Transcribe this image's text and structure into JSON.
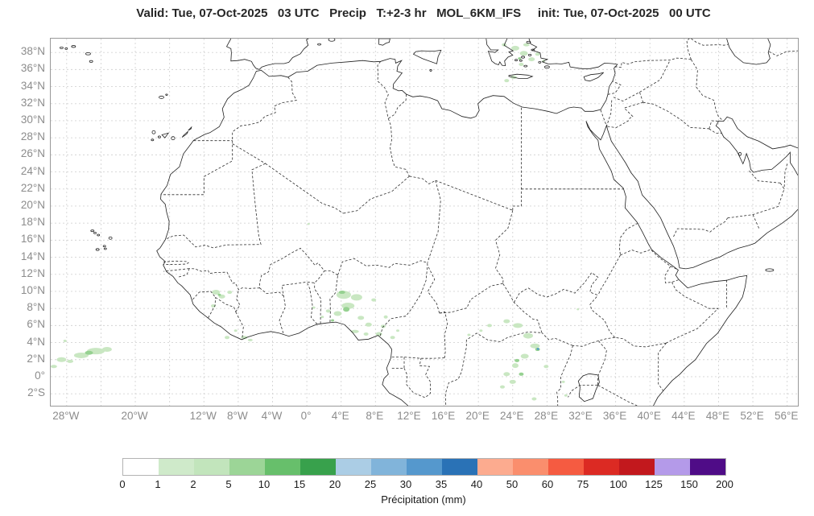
{
  "title": "Valid: Tue, 07-Oct-2025   03 UTC   Precip   T:+2-3 hr   MOL_6KM_IFS     init: Tue, 07-Oct-2025   00 UTC",
  "map": {
    "extent": {
      "lon_min": -29.86,
      "lon_max": 57.25,
      "lat_min": -3.4,
      "lat_max": 39.62
    },
    "grid": {
      "lon_start": -28,
      "lon_step": 4,
      "lon_end": 56,
      "lat_start": -2,
      "lat_step": 2,
      "lat_end": 38,
      "color": "#d4d4d4"
    },
    "lat_labels": [
      {
        "v": 38,
        "t": "38°N"
      },
      {
        "v": 36,
        "t": "36°N"
      },
      {
        "v": 34,
        "t": "34°N"
      },
      {
        "v": 32,
        "t": "32°N"
      },
      {
        "v": 30,
        "t": "30°N"
      },
      {
        "v": 28,
        "t": "28°N"
      },
      {
        "v": 26,
        "t": "26°N"
      },
      {
        "v": 24,
        "t": "24°N"
      },
      {
        "v": 22,
        "t": "22°N"
      },
      {
        "v": 20,
        "t": "20°N"
      },
      {
        "v": 18,
        "t": "18°N"
      },
      {
        "v": 16,
        "t": "16°N"
      },
      {
        "v": 14,
        "t": "14°N"
      },
      {
        "v": 12,
        "t": "12°N"
      },
      {
        "v": 10,
        "t": "10°N"
      },
      {
        "v": 8,
        "t": "8°N"
      },
      {
        "v": 6,
        "t": "6°N"
      },
      {
        "v": 4,
        "t": "4°N"
      },
      {
        "v": 2,
        "t": "2°N"
      },
      {
        "v": 0,
        "t": "0°"
      },
      {
        "v": -2,
        "t": "2°S"
      }
    ],
    "lon_labels": [
      {
        "v": -28,
        "t": "28°W"
      },
      {
        "v": -20,
        "t": "20°W"
      },
      {
        "v": -12,
        "t": "12°W"
      },
      {
        "v": -8,
        "t": "8°W"
      },
      {
        "v": -4,
        "t": "4°W"
      },
      {
        "v": 0,
        "t": "0°"
      },
      {
        "v": 4,
        "t": "4°E"
      },
      {
        "v": 8,
        "t": "8°E"
      },
      {
        "v": 12,
        "t": "12°E"
      },
      {
        "v": 16,
        "t": "16°E"
      },
      {
        "v": 20,
        "t": "20°E"
      },
      {
        "v": 24,
        "t": "24°E"
      },
      {
        "v": 28,
        "t": "28°E"
      },
      {
        "v": 32,
        "t": "32°E"
      },
      {
        "v": 36,
        "t": "36°E"
      },
      {
        "v": 40,
        "t": "40°E"
      },
      {
        "v": 44,
        "t": "44°E"
      },
      {
        "v": 48,
        "t": "48°E"
      },
      {
        "v": 52,
        "t": "52°E"
      },
      {
        "v": 56,
        "t": "56°E"
      }
    ],
    "coast_color": "#1f1f1f",
    "border_color": "#2e2e2e"
  },
  "colorbar": {
    "label": "Précipitation (mm)",
    "ticks": [
      "0",
      "1",
      "2",
      "5",
      "10",
      "15",
      "20",
      "25",
      "30",
      "35",
      "40",
      "50",
      "60",
      "75",
      "100",
      "125",
      "150",
      "200"
    ],
    "colors": [
      "#ffffff",
      "#cfeaca",
      "#c2e5bc",
      "#9cd597",
      "#67bf6b",
      "#38a14c",
      "#abcde5",
      "#81b4da",
      "#5598cd",
      "#2a72b6",
      "#fcab8f",
      "#fa8e6d",
      "#f55b41",
      "#dc2a23",
      "#c2181d",
      "#b49ae9",
      "#4f0c87"
    ]
  },
  "chart_data": {
    "type": "map-precipitation",
    "title": "Precip T:+2-3 hr MOL_6KM_IFS",
    "units": "mm",
    "levels_mm": [
      0,
      1,
      2,
      5,
      10,
      15,
      20,
      25,
      30,
      35,
      40,
      50,
      60,
      75,
      100,
      125,
      150,
      200
    ],
    "level_colors": {
      "1": "#c9e7c2",
      "2": "#96d191",
      "4": "#4d97cb"
    },
    "blob_format": "[lon, lat, rx_px, ry_px, level]",
    "blobs": [
      [
        -29.5,
        1.2,
        4,
        2,
        1
      ],
      [
        -28.6,
        2.0,
        6,
        3,
        1
      ],
      [
        -27.6,
        1.8,
        4,
        2,
        1
      ],
      [
        -26.3,
        2.5,
        9,
        3.5,
        1
      ],
      [
        -24.6,
        3.0,
        11,
        4,
        1
      ],
      [
        -23.3,
        3.2,
        6,
        3,
        1
      ],
      [
        -25.4,
        2.8,
        5,
        2.5,
        2
      ],
      [
        -28.2,
        4.2,
        2,
        1.5,
        1
      ],
      [
        -10.6,
        9.9,
        5,
        3,
        1
      ],
      [
        -9.9,
        9.4,
        4,
        2.5,
        1
      ],
      [
        -10.9,
        8.3,
        3,
        2,
        1
      ],
      [
        -9.0,
        9.9,
        3,
        2,
        1
      ],
      [
        -10.2,
        9.6,
        2,
        1.5,
        2
      ],
      [
        -9.3,
        4.6,
        3,
        2,
        1
      ],
      [
        -7.3,
        4.6,
        4,
        2,
        1
      ],
      [
        -6.6,
        4.3,
        3,
        1.5,
        1
      ],
      [
        -8.3,
        5.4,
        2,
        1.5,
        1
      ],
      [
        0.2,
        17.9,
        1.5,
        1.2,
        1
      ],
      [
        4.3,
        9.6,
        9,
        5,
        1
      ],
      [
        5.8,
        9.3,
        7,
        4,
        1
      ],
      [
        4.8,
        8.3,
        8,
        4,
        1
      ],
      [
        3.6,
        7.4,
        5,
        3,
        1
      ],
      [
        4.6,
        7.9,
        4,
        3,
        2
      ],
      [
        4.1,
        9.9,
        4,
        2,
        2
      ],
      [
        6.3,
        6.9,
        4,
        2.5,
        1
      ],
      [
        7.2,
        6.1,
        4,
        2.5,
        1
      ],
      [
        5.6,
        5.3,
        5,
        2,
        1
      ],
      [
        6.9,
        5.0,
        3,
        2,
        1
      ],
      [
        2.5,
        7.7,
        3,
        2,
        1
      ],
      [
        1.8,
        7.0,
        2,
        1.5,
        1
      ],
      [
        8.4,
        5.0,
        4,
        2.5,
        1
      ],
      [
        8.9,
        5.9,
        3,
        2,
        1
      ],
      [
        3.0,
        6.6,
        2,
        1.5,
        2
      ],
      [
        0.8,
        8.1,
        2,
        1.5,
        1
      ],
      [
        9.2,
        7.0,
        2.5,
        2,
        1
      ],
      [
        7.8,
        9.0,
        3,
        2,
        1
      ],
      [
        10.0,
        4.6,
        3,
        2,
        1
      ],
      [
        10.6,
        5.4,
        2,
        1.5,
        1
      ],
      [
        21.3,
        6.0,
        3,
        2,
        1
      ],
      [
        23.3,
        6.5,
        4,
        2.5,
        1
      ],
      [
        24.6,
        6.0,
        6,
        3,
        1
      ],
      [
        25.8,
        4.8,
        6,
        3.5,
        1
      ],
      [
        26.6,
        3.6,
        6,
        3,
        1
      ],
      [
        26.9,
        3.2,
        3,
        2,
        2
      ],
      [
        26.95,
        3.25,
        1.5,
        1.2,
        4
      ],
      [
        25.4,
        2.4,
        5,
        3,
        1
      ],
      [
        24.3,
        1.3,
        4,
        3,
        1
      ],
      [
        23.3,
        0.3,
        4,
        2.5,
        1
      ],
      [
        24.0,
        -0.6,
        4,
        2.5,
        1
      ],
      [
        22.8,
        -1.2,
        3,
        2,
        1
      ],
      [
        25.0,
        0.3,
        3,
        2,
        2
      ],
      [
        24.5,
        1.9,
        3,
        2,
        2
      ],
      [
        27.9,
        1.2,
        3,
        2,
        1
      ],
      [
        29.9,
        -0.6,
        2,
        1.5,
        1
      ],
      [
        30.2,
        -2.2,
        2,
        1.5,
        1
      ],
      [
        26.5,
        -2.6,
        3,
        2,
        1
      ],
      [
        20.3,
        5.4,
        2,
        1.5,
        1
      ],
      [
        18.9,
        4.9,
        2,
        1.5,
        1
      ],
      [
        31.6,
        7.9,
        1.5,
        1.2,
        1
      ],
      [
        24.3,
        38.5,
        5,
        3,
        1
      ],
      [
        25.3,
        37.9,
        5,
        3,
        1
      ],
      [
        26.2,
        37.2,
        4,
        2.5,
        1
      ],
      [
        25.0,
        36.6,
        3,
        2,
        1
      ],
      [
        24.1,
        35.1,
        4,
        2,
        1
      ],
      [
        23.3,
        34.7,
        3,
        2,
        1
      ],
      [
        26.9,
        37.8,
        3,
        2,
        1
      ],
      [
        25.6,
        38.9,
        4,
        2,
        1
      ],
      [
        24.8,
        37.3,
        2,
        1.5,
        2
      ],
      [
        23.0,
        38.9,
        3,
        2,
        1
      ],
      [
        27.6,
        37.0,
        2,
        1.5,
        1
      ]
    ]
  }
}
